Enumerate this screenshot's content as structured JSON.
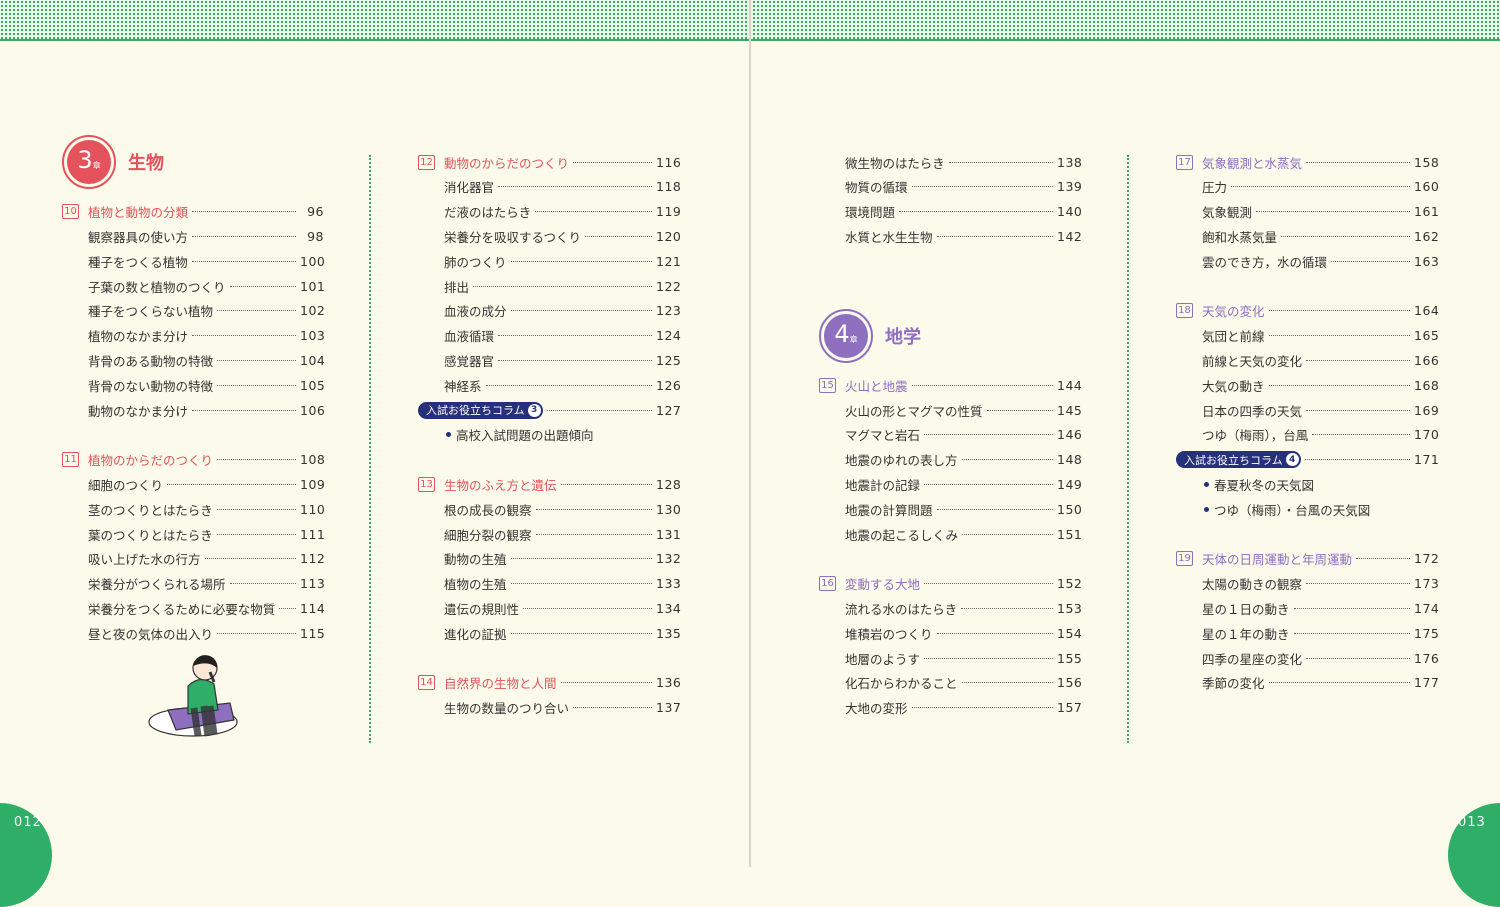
{
  "colors": {
    "biology": "#e4535c",
    "earth": "#8e6fc0",
    "column": "#27307a",
    "green": "#2fae68"
  },
  "pages": {
    "left": "012",
    "right": "013"
  },
  "chapter_suffix": "章",
  "column_label": "入試お役立ちコラム",
  "columns": [
    {
      "theme": "biology",
      "entries": [
        {
          "type": "chapter",
          "num": "3",
          "title": "生物"
        },
        {
          "type": "section",
          "num": "10",
          "title": "植物と動物の分類",
          "page": "96"
        },
        {
          "type": "item",
          "title": "観察器具の使い方",
          "page": "98"
        },
        {
          "type": "item",
          "title": "種子をつくる植物",
          "page": "100"
        },
        {
          "type": "item",
          "title": "子葉の数と植物のつくり",
          "page": "101"
        },
        {
          "type": "item",
          "title": "種子をつくらない植物",
          "page": "102"
        },
        {
          "type": "item",
          "title": "植物のなかま分け",
          "page": "103"
        },
        {
          "type": "item",
          "title": "背骨のある動物の特徴",
          "page": "104"
        },
        {
          "type": "item",
          "title": "背骨のない動物の特徴",
          "page": "105"
        },
        {
          "type": "item",
          "title": "動物のなかま分け",
          "page": "106"
        },
        {
          "type": "section",
          "num": "11",
          "title": "植物のからだのつくり",
          "page": "108"
        },
        {
          "type": "item",
          "title": "細胞のつくり",
          "page": "109"
        },
        {
          "type": "item",
          "title": "茎のつくりとはたらき",
          "page": "110"
        },
        {
          "type": "item",
          "title": "葉のつくりとはたらき",
          "page": "111"
        },
        {
          "type": "item",
          "title": "吸い上げた水の行方",
          "page": "112"
        },
        {
          "type": "item",
          "title": "栄養分がつくられる場所",
          "page": "113"
        },
        {
          "type": "item",
          "title": "栄養分をつくるために必要な物質",
          "page": "114"
        },
        {
          "type": "item",
          "title": "昼と夜の気体の出入り",
          "page": "115"
        }
      ]
    },
    {
      "theme": "biology",
      "entries": [
        {
          "type": "section",
          "num": "12",
          "title": "動物のからだのつくり",
          "page": "116"
        },
        {
          "type": "item",
          "title": "消化器官",
          "page": "118"
        },
        {
          "type": "item",
          "title": "だ液のはたらき",
          "page": "119"
        },
        {
          "type": "item",
          "title": "栄養分を吸収するつくり",
          "page": "120"
        },
        {
          "type": "item",
          "title": "肺のつくり",
          "page": "121"
        },
        {
          "type": "item",
          "title": "排出",
          "page": "122"
        },
        {
          "type": "item",
          "title": "血液の成分",
          "page": "123"
        },
        {
          "type": "item",
          "title": "血液循環",
          "page": "124"
        },
        {
          "type": "item",
          "title": "感覚器官",
          "page": "125"
        },
        {
          "type": "item",
          "title": "神経系",
          "page": "126"
        },
        {
          "type": "column",
          "num": "3",
          "page": "127"
        },
        {
          "type": "bullet",
          "title": "高校入試問題の出題傾向"
        },
        {
          "type": "section",
          "num": "13",
          "title": "生物のふえ方と遺伝",
          "page": "128"
        },
        {
          "type": "item",
          "title": "根の成長の観察",
          "page": "130"
        },
        {
          "type": "item",
          "title": "細胞分裂の観察",
          "page": "131"
        },
        {
          "type": "item",
          "title": "動物の生殖",
          "page": "132"
        },
        {
          "type": "item",
          "title": "植物の生殖",
          "page": "133"
        },
        {
          "type": "item",
          "title": "遺伝の規則性",
          "page": "134"
        },
        {
          "type": "item",
          "title": "進化の証拠",
          "page": "135"
        },
        {
          "type": "section",
          "num": "14",
          "title": "自然界の生物と人間",
          "page": "136"
        },
        {
          "type": "item",
          "title": "生物の数量のつり合い",
          "page": "137"
        }
      ]
    },
    {
      "theme": "earth",
      "entries": [
        {
          "type": "item",
          "title": "微生物のはたらき",
          "page": "138"
        },
        {
          "type": "item",
          "title": "物質の循環",
          "page": "139"
        },
        {
          "type": "item",
          "title": "環境問題",
          "page": "140"
        },
        {
          "type": "item",
          "title": "水質と水生生物",
          "page": "142"
        },
        {
          "type": "chapter",
          "num": "4",
          "title": "地学"
        },
        {
          "type": "section",
          "num": "15",
          "title": "火山と地震",
          "page": "144"
        },
        {
          "type": "item",
          "title": "火山の形とマグマの性質",
          "page": "145"
        },
        {
          "type": "item",
          "title": "マグマと岩石",
          "page": "146"
        },
        {
          "type": "item",
          "title": "地震のゆれの表し方",
          "page": "148"
        },
        {
          "type": "item",
          "title": "地震計の記録",
          "page": "149"
        },
        {
          "type": "item",
          "title": "地震の計算問題",
          "page": "150"
        },
        {
          "type": "item",
          "title": "地震の起こるしくみ",
          "page": "151"
        },
        {
          "type": "section",
          "num": "16",
          "title": "変動する大地",
          "page": "152"
        },
        {
          "type": "item",
          "title": "流れる水のはたらき",
          "page": "153"
        },
        {
          "type": "item",
          "title": "堆積岩のつくり",
          "page": "154"
        },
        {
          "type": "item",
          "title": "地層のようす",
          "page": "155"
        },
        {
          "type": "item",
          "title": "化石からわかること",
          "page": "156"
        },
        {
          "type": "item",
          "title": "大地の変形",
          "page": "157"
        }
      ]
    },
    {
      "theme": "earth",
      "entries": [
        {
          "type": "section",
          "num": "17",
          "title": "気象観測と水蒸気",
          "page": "158"
        },
        {
          "type": "item",
          "title": "圧力",
          "page": "160"
        },
        {
          "type": "item",
          "title": "気象観測",
          "page": "161"
        },
        {
          "type": "item",
          "title": "飽和水蒸気量",
          "page": "162"
        },
        {
          "type": "item",
          "title": "雲のでき方，水の循環",
          "page": "163"
        },
        {
          "type": "section",
          "num": "18",
          "title": "天気の変化",
          "page": "164"
        },
        {
          "type": "item",
          "title": "気団と前線",
          "page": "165"
        },
        {
          "type": "item",
          "title": "前線と天気の変化",
          "page": "166"
        },
        {
          "type": "item",
          "title": "大気の動き",
          "page": "168"
        },
        {
          "type": "item",
          "title": "日本の四季の天気",
          "page": "169"
        },
        {
          "type": "item",
          "title": "つゆ（梅雨），台風",
          "page": "170"
        },
        {
          "type": "column",
          "num": "4",
          "page": "171"
        },
        {
          "type": "bullet",
          "title": "春夏秋冬の天気図"
        },
        {
          "type": "bullet",
          "title": "つゆ（梅雨）・台風の天気図"
        },
        {
          "type": "section",
          "num": "19",
          "title": "天体の日周運動と年周運動",
          "page": "172"
        },
        {
          "type": "item",
          "title": "太陽の動きの観察",
          "page": "173"
        },
        {
          "type": "item",
          "title": "星の１日の動き",
          "page": "174"
        },
        {
          "type": "item",
          "title": "星の１年の動き",
          "page": "175"
        },
        {
          "type": "item",
          "title": "四季の星座の変化",
          "page": "176"
        },
        {
          "type": "item",
          "title": "季節の変化",
          "page": "177"
        }
      ]
    }
  ]
}
